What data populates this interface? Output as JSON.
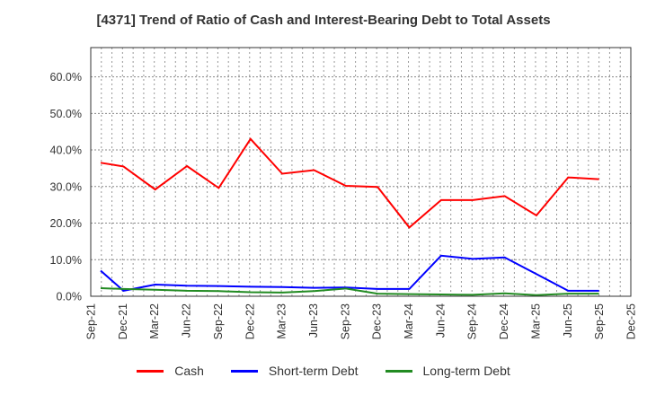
{
  "chart_data": {
    "type": "line",
    "title": "[4371]  Trend of Ratio of Cash and Interest-Bearing Debt to Total Assets",
    "xlabel": "",
    "ylabel": "",
    "x_tick_labels": [
      "Sep-21",
      "Dec-21",
      "Mar-22",
      "Jun-22",
      "Sep-22",
      "Dec-22",
      "Mar-23",
      "Jun-23",
      "Sep-23",
      "Dec-23",
      "Mar-24",
      "Jun-24",
      "Sep-24",
      "Dec-24",
      "Mar-25",
      "Jun-25",
      "Sep-25",
      "Dec-25"
    ],
    "y_tick_labels": [
      "0.0%",
      "10.0%",
      "20.0%",
      "30.0%",
      "40.0%",
      "50.0%",
      "60.0%"
    ],
    "ylim": [
      0,
      68
    ],
    "grid": true,
    "legend_position": "bottom",
    "x": [
      "Sep-21",
      "Dec-21",
      "Mar-22",
      "Jun-22",
      "Sep-22",
      "Dec-22",
      "Mar-23",
      "Jun-23",
      "Sep-23",
      "Dec-23",
      "Mar-24",
      "Jun-24",
      "Sep-24",
      "Dec-24",
      "Mar-25",
      "Jun-25",
      "Sep-25"
    ],
    "series": [
      {
        "name": "Cash",
        "color": "#ff0000",
        "values": [
          36.5,
          35.5,
          29.2,
          35.6,
          29.6,
          43.0,
          33.5,
          34.5,
          30.2,
          29.9,
          18.8,
          26.3,
          26.3,
          27.4,
          22.1,
          32.5,
          32.0
        ]
      },
      {
        "name": "Short-term Debt",
        "color": "#0000ff",
        "values": [
          7.0,
          1.5,
          3.2,
          2.9,
          2.8,
          2.6,
          2.5,
          2.3,
          2.4,
          2.0,
          2.0,
          11.1,
          10.2,
          10.6,
          6.1,
          1.5,
          1.5
        ]
      },
      {
        "name": "Long-term Debt",
        "color": "#228b22",
        "values": [
          2.2,
          2.0,
          1.8,
          1.5,
          1.4,
          1.1,
          1.0,
          1.4,
          2.1,
          0.7,
          0.6,
          0.5,
          0.4,
          0.8,
          0.3,
          0.7,
          0.7
        ]
      }
    ]
  },
  "legend": {
    "items": [
      {
        "label": "Cash",
        "color": "#ff0000"
      },
      {
        "label": "Short-term Debt",
        "color": "#0000ff"
      },
      {
        "label": "Long-term Debt",
        "color": "#228b22"
      }
    ]
  }
}
